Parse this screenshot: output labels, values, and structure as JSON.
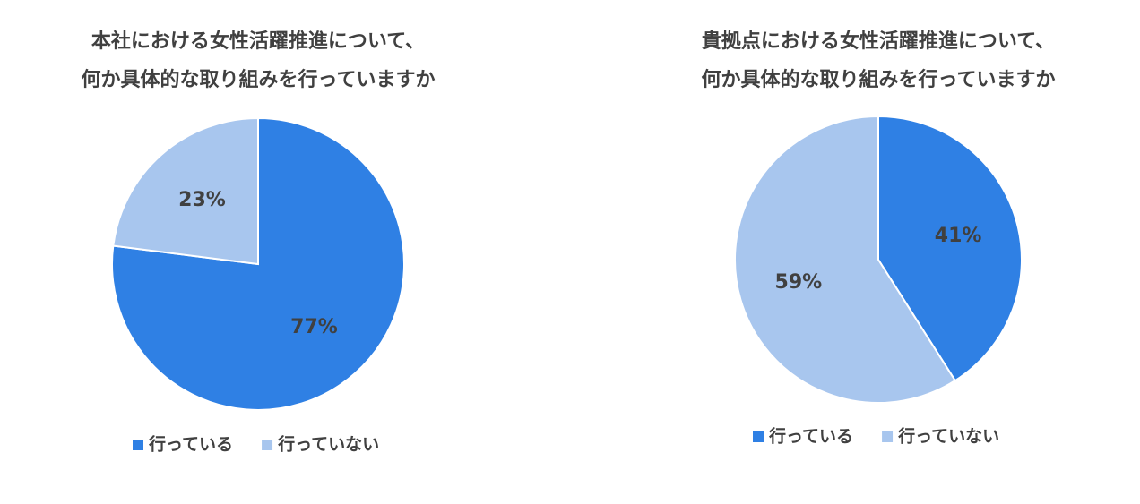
{
  "chart_data": [
    {
      "type": "pie",
      "title": [
        "本社における女性活躍推進について、",
        "何か具体的な取り組みを行っていますか"
      ],
      "categories": [
        "行っている",
        "行っていない"
      ],
      "values": [
        77,
        23
      ],
      "value_labels": [
        "77%",
        "23%"
      ],
      "colors": [
        "#2f80e4",
        "#a8c6ee"
      ],
      "legend": "bottom"
    },
    {
      "type": "pie",
      "title": [
        "貴拠点における女性活躍推進について、",
        "何か具体的な取り組みを行っていますか"
      ],
      "categories": [
        "行っている",
        "行っていない"
      ],
      "values": [
        41,
        59
      ],
      "value_labels": [
        "41%",
        "59%"
      ],
      "colors": [
        "#2f80e4",
        "#a8c6ee"
      ],
      "legend": "bottom"
    }
  ]
}
